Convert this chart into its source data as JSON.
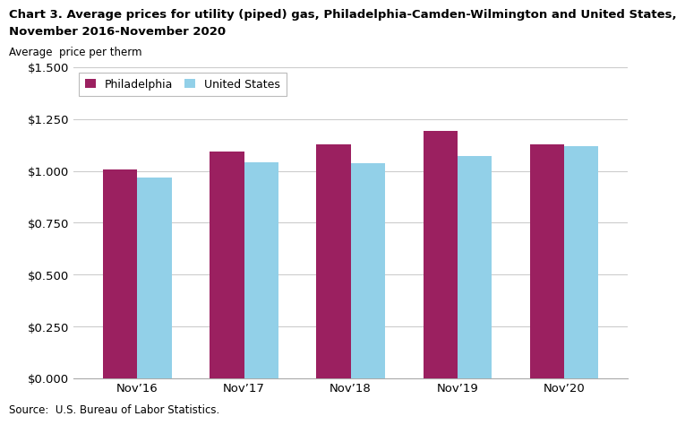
{
  "title_line1": "Chart 3. Average prices for utility (piped) gas, Philadelphia-Camden-Wilmington and United States,",
  "title_line2": "November 2016-November 2020",
  "ylabel": "Average  price per therm",
  "categories": [
    "Nov’16",
    "Nov’17",
    "Nov’18",
    "Nov’19",
    "Nov’20"
  ],
  "philadelphia": [
    1.007,
    1.093,
    1.13,
    1.192,
    1.13
  ],
  "us": [
    0.967,
    1.04,
    1.037,
    1.073,
    1.12
  ],
  "color_philadelphia": "#9B2060",
  "color_us": "#92D0E8",
  "ylim": [
    0,
    1.5
  ],
  "yticks": [
    0.0,
    0.25,
    0.5,
    0.75,
    1.0,
    1.25,
    1.5
  ],
  "ytick_labels": [
    "$0.000",
    "$0.250",
    "$0.500",
    "$0.750",
    "$1.000",
    "$1.250",
    "$1.500"
  ],
  "legend_labels": [
    "Philadelphia",
    "United States"
  ],
  "source": "Source:  U.S. Bureau of Labor Statistics.",
  "bar_width": 0.32,
  "background_color": "#ffffff",
  "grid_color": "#cccccc"
}
